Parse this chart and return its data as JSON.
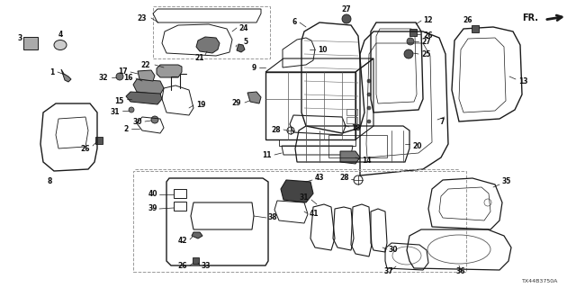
{
  "bg_color": "#ffffff",
  "line_color": "#1a1a1a",
  "label_color": "#111111",
  "diagram_code": "TX44B3750A",
  "lw": 0.7,
  "label_fs": 5.5
}
